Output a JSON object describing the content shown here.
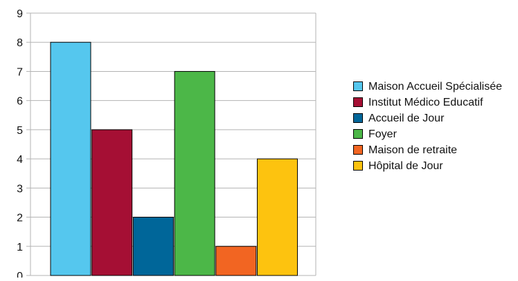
{
  "chart_data": {
    "type": "bar",
    "title": "",
    "xlabel": "",
    "ylabel": "",
    "categories": [
      "Maison Accueil Spécialisée",
      "Institut Médico Educatif",
      "Accueil de Jour",
      "Foyer",
      "Maison de retraite",
      "Hôpital de Jour"
    ],
    "values": [
      8,
      5,
      2,
      7,
      1,
      4
    ],
    "colors": [
      "#55c7ee",
      "#a50f34",
      "#006699",
      "#4cb748",
      "#f26522",
      "#fdc30f"
    ],
    "ylim": [
      0,
      9
    ],
    "yticks": [
      "0",
      "1",
      "2",
      "3",
      "4",
      "5",
      "6",
      "7",
      "8",
      "9"
    ],
    "grid": true,
    "legend": {
      "placement": "right",
      "entries": [
        "Maison Accueil Spécialisée",
        "Institut Médico Educatif",
        "Accueil de Jour",
        "Foyer",
        "Maison de retraite",
        "Hôpital de Jour"
      ]
    }
  }
}
